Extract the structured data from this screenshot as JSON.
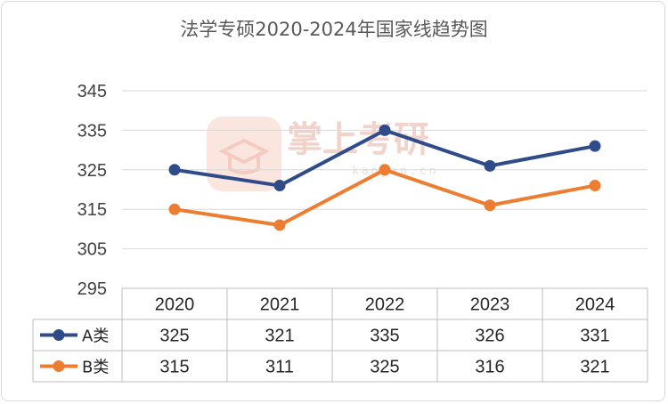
{
  "chart_data": {
    "type": "line",
    "title": "法学专硕2020-2024年国家线趋势图",
    "categories": [
      "2020",
      "2021",
      "2022",
      "2023",
      "2024"
    ],
    "series": [
      {
        "name": "A类",
        "values": [
          325,
          321,
          335,
          326,
          331
        ],
        "color": "#2f4b8a"
      },
      {
        "name": "B类",
        "values": [
          315,
          311,
          325,
          316,
          321
        ],
        "color": "#ed7d31"
      }
    ],
    "ylim": [
      295,
      345
    ],
    "yticks": [
      295,
      305,
      315,
      325,
      335,
      345
    ],
    "grid": true,
    "legend": "data-table-left",
    "watermark": {
      "text": "掌上考研",
      "sub": "kaoyan.cn"
    }
  }
}
